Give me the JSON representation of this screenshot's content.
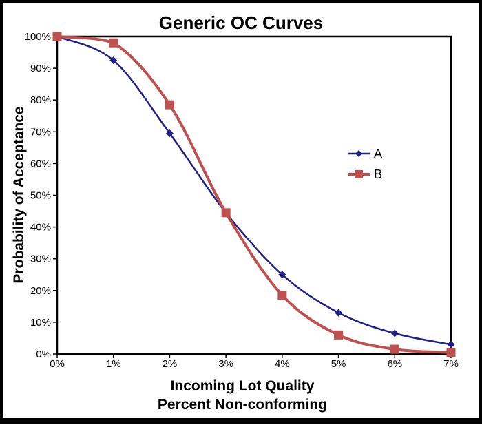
{
  "figure": {
    "background_color": "#ffffff",
    "border_color": "#000000"
  },
  "chart_data": {
    "type": "line",
    "title": "Generic OC Curves",
    "ylabel": "Probability of Acceptance",
    "xlabel_line1": "Incoming Lot Quality",
    "xlabel_line2": "Percent Non-conforming",
    "x": [
      0,
      1,
      2,
      3,
      4,
      5,
      6,
      7
    ],
    "x_tick_labels": [
      "0%",
      "1%",
      "2%",
      "3%",
      "4%",
      "5%",
      "6%",
      "7%"
    ],
    "y_tick_labels": [
      "0%",
      "10%",
      "20%",
      "30%",
      "40%",
      "50%",
      "60%",
      "70%",
      "80%",
      "90%",
      "100%"
    ],
    "xlim": [
      0,
      7
    ],
    "ylim": [
      0,
      100
    ],
    "grid": false,
    "line_style": "smooth",
    "legend_position": "center-right",
    "axis_color": "#000000",
    "series": [
      {
        "name": "A",
        "marker": "diamond",
        "color": "#1F1F8A",
        "line_width": 2.5,
        "values": [
          100,
          92.5,
          69.5,
          44.5,
          25,
          13,
          6.5,
          3
        ]
      },
      {
        "name": "B",
        "marker": "square",
        "color": "#C0504D",
        "line_width": 4,
        "values": [
          100,
          98,
          78.5,
          44.5,
          18.5,
          6,
          1.5,
          0.5
        ]
      }
    ]
  }
}
